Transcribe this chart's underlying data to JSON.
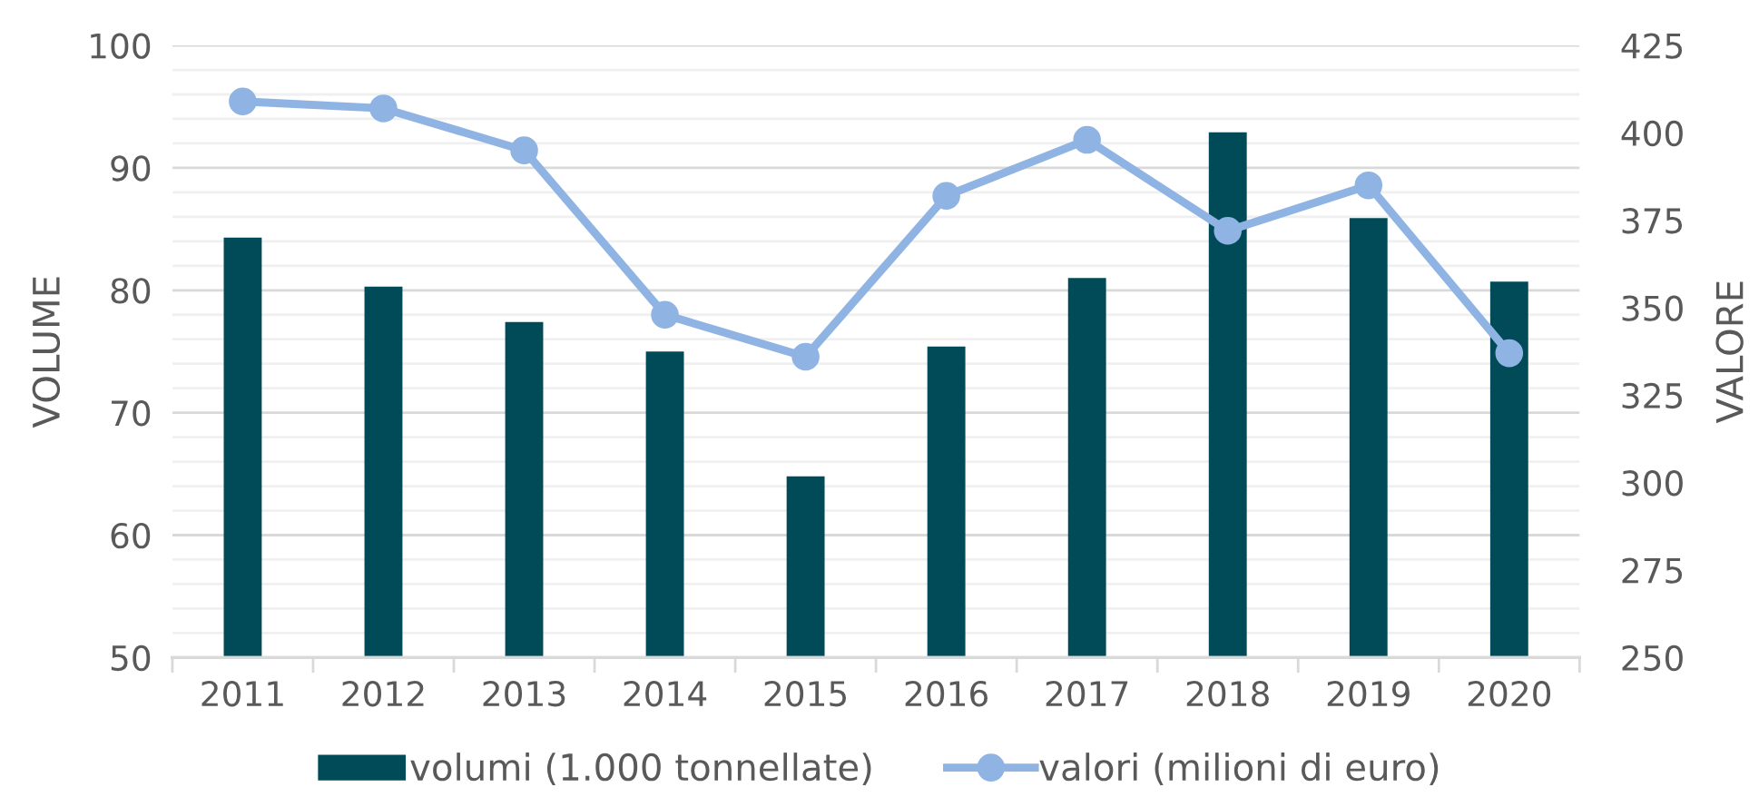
{
  "chart_data": {
    "type": "bar",
    "categories": [
      "2011",
      "2012",
      "2013",
      "2014",
      "2015",
      "2016",
      "2017",
      "2018",
      "2019",
      "2020"
    ],
    "ylabel": "VOLUME",
    "y2label": "VALORE",
    "ylim": [
      50,
      100
    ],
    "yticks": [
      50,
      {
        "value": 52,
        "label": null
      },
      {
        "value": 54,
        "label": null
      },
      {
        "value": 56,
        "label": null
      },
      {
        "value": 58,
        "label": null
      },
      60,
      {
        "value": 62,
        "label": null
      },
      {
        "value": 64,
        "label": null
      },
      {
        "value": 66,
        "label": null
      },
      {
        "value": 68,
        "label": null
      },
      70,
      {
        "value": 72,
        "label": null
      },
      {
        "value": 74,
        "label": null
      },
      {
        "value": 76,
        "label": null
      },
      {
        "value": 78,
        "label": null
      },
      80,
      {
        "value": 82,
        "label": null
      },
      {
        "value": 84,
        "label": null
      },
      {
        "value": 86,
        "label": null
      },
      {
        "value": 88,
        "label": null
      },
      90,
      {
        "value": 92,
        "label": null
      },
      {
        "value": 94,
        "label": null
      },
      {
        "value": 96,
        "label": null
      },
      {
        "value": 98,
        "label": null
      },
      100
    ],
    "y2lim": [
      250,
      425
    ],
    "y2ticks": [
      250,
      275,
      300,
      325,
      350,
      375,
      400,
      425
    ],
    "grid": "y",
    "legend": "bottom",
    "series": [
      {
        "name": "volumi (1.000 tonnellate)",
        "color": "#004b57",
        "values": [
          84.3,
          80.3,
          77.4,
          75.0,
          64.8,
          75.4,
          81.0,
          92.9,
          85.9,
          80.7
        ]
      },
      {
        "name": "valori (milioni di euro)",
        "type": "line",
        "axis": "y2",
        "color": "#8fb4e3",
        "marker": "circle",
        "line_style": "solid",
        "values": [
          409,
          407,
          395,
          348,
          336,
          382,
          398,
          372,
          385,
          337
        ]
      }
    ]
  }
}
